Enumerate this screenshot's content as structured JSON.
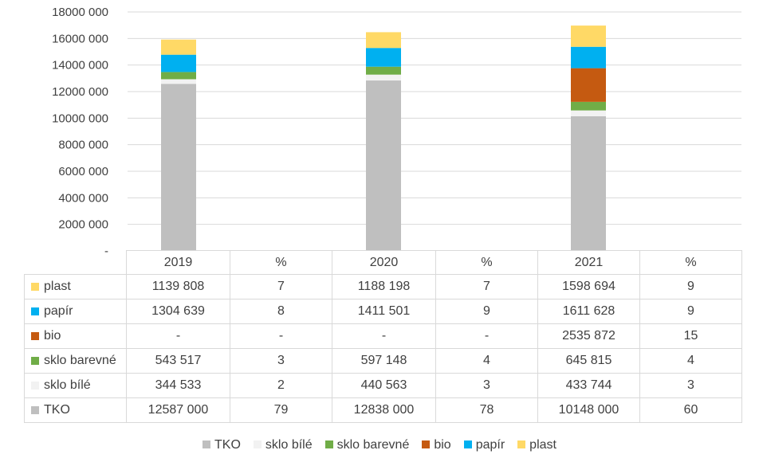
{
  "colors": {
    "TKO": "#bfbfbf",
    "sklo bílé": "#f2f2f2",
    "sklo barevné": "#70ad47",
    "bio": "#c55a11",
    "papír": "#00b0f0",
    "plast": "#ffd966",
    "grid": "#d9d9d9"
  },
  "chart_data": {
    "type": "bar",
    "stacked": true,
    "categories": [
      "2019",
      "2020",
      "2021"
    ],
    "ylim": [
      0,
      18000000
    ],
    "y_ticks": [
      0,
      2000000,
      4000000,
      6000000,
      8000000,
      10000000,
      12000000,
      14000000,
      16000000,
      18000000
    ],
    "y_tick_labels": [
      "-",
      "2000 000",
      "4000 000",
      "6000 000",
      "8000 000",
      "10000 000",
      "12000 000",
      "14000 000",
      "16000 000",
      "18000 000"
    ],
    "grid": true,
    "legend_position": "bottom",
    "series": [
      {
        "name": "TKO",
        "values": [
          12587000,
          12838000,
          10148000
        ]
      },
      {
        "name": "sklo bílé",
        "values": [
          344533,
          440563,
          433744
        ]
      },
      {
        "name": "sklo barevné",
        "values": [
          543517,
          597148,
          645815
        ]
      },
      {
        "name": "bio",
        "values": [
          0,
          0,
          2535872
        ]
      },
      {
        "name": "papír",
        "values": [
          1304639,
          1411501,
          1611628
        ]
      },
      {
        "name": "plast",
        "values": [
          1139808,
          1188198,
          1598694
        ]
      }
    ]
  },
  "table": {
    "headers": [
      "2019",
      "%",
      "2020",
      "%",
      "2021",
      "%"
    ],
    "rows": [
      {
        "label": "plast",
        "cells": [
          "1139 808",
          "7",
          "1188 198",
          "7",
          "1598 694",
          "9"
        ]
      },
      {
        "label": "papír",
        "cells": [
          "1304 639",
          "8",
          "1411 501",
          "9",
          "1611 628",
          "9"
        ]
      },
      {
        "label": "bio",
        "cells": [
          "-",
          "-",
          "-",
          "-",
          "2535 872",
          "15"
        ]
      },
      {
        "label": "sklo barevné",
        "cells": [
          "543 517",
          "3",
          "597 148",
          "4",
          "645 815",
          "4"
        ]
      },
      {
        "label": "sklo bílé",
        "cells": [
          "344 533",
          "2",
          "440 563",
          "3",
          "433 744",
          "3"
        ]
      },
      {
        "label": "TKO",
        "cells": [
          "12587 000",
          "79",
          "12838 000",
          "78",
          "10148 000",
          "60"
        ]
      }
    ]
  },
  "legend": [
    "TKO",
    "sklo bílé",
    "sklo barevné",
    "bio",
    "papír",
    "plast"
  ]
}
